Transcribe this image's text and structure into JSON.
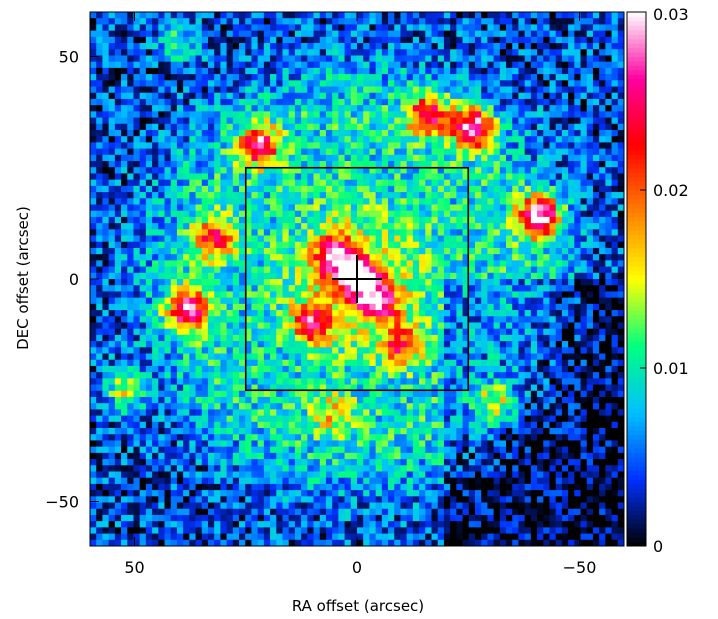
{
  "chart_data": {
    "type": "heatmap",
    "title": "",
    "xlabel": "RA offset (arcsec)",
    "ylabel": "DEC offset (arcsec)",
    "xlim": [
      60,
      -60
    ],
    "ylim": [
      -60,
      60
    ],
    "x_ticks": [
      50,
      0,
      -50
    ],
    "x_tick_labels": [
      "50",
      "0",
      "−50"
    ],
    "y_ticks": [
      50,
      0,
      -50
    ],
    "y_tick_labels": [
      "50",
      "0",
      "−50"
    ],
    "grid": false,
    "colorbar": {
      "range": [
        0,
        0.03
      ],
      "ticks": [
        0,
        0.01,
        0.02,
        0.03
      ],
      "tick_labels": [
        "0",
        "0.01",
        "0.02",
        "0.03"
      ],
      "colormap": [
        "#000000",
        "#0030ff",
        "#00c0ff",
        "#00ff80",
        "#ffff00",
        "#ff8000",
        "#ff0000",
        "#ff00a0",
        "#ffffff"
      ]
    },
    "field_box": {
      "ra": [
        25,
        -25
      ],
      "dec": [
        -25,
        25
      ]
    },
    "center_marker": {
      "ra": 0,
      "dec": 0
    },
    "features": [
      {
        "ra": 0,
        "dec": 0,
        "value": 0.026
      },
      {
        "ra": 5,
        "dec": 5,
        "value": 0.022
      },
      {
        "ra": -5,
        "dec": -5,
        "value": 0.021
      },
      {
        "ra": 10,
        "dec": -10,
        "value": 0.02
      },
      {
        "ra": -10,
        "dec": -15,
        "value": 0.019
      },
      {
        "ra": 22,
        "dec": 30,
        "value": 0.024
      },
      {
        "ra": -16,
        "dec": 37,
        "value": 0.023
      },
      {
        "ra": -26,
        "dec": 34,
        "value": 0.028
      },
      {
        "ra": -41,
        "dec": 14,
        "value": 0.03
      },
      {
        "ra": 32,
        "dec": 9,
        "value": 0.02
      },
      {
        "ra": 38,
        "dec": -7,
        "value": 0.026
      },
      {
        "ra": 52,
        "dec": -25,
        "value": 0.016
      },
      {
        "ra": -31,
        "dec": -28,
        "value": 0.016
      },
      {
        "ra": 5,
        "dec": -30,
        "value": 0.014
      },
      {
        "ra": 40,
        "dec": 53,
        "value": 0.013
      }
    ]
  }
}
